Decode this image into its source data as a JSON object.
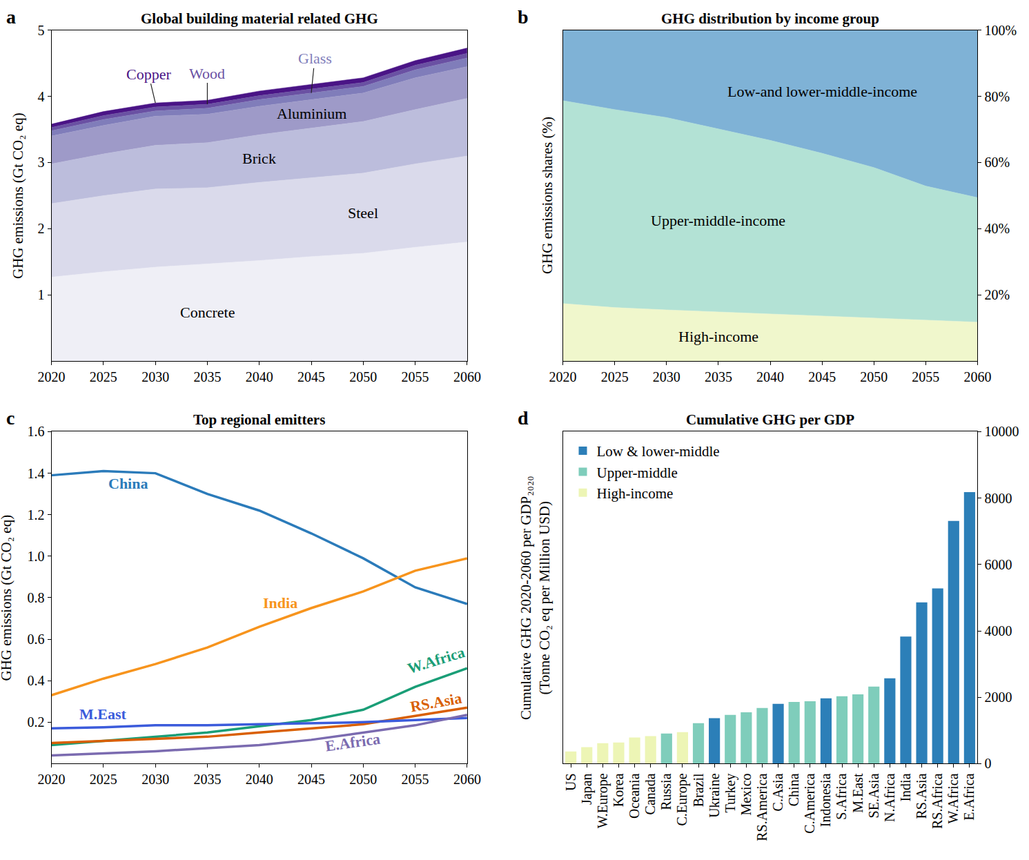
{
  "chart_data": [
    {
      "panel": "a",
      "type": "area",
      "stacked": true,
      "title": "Global building material related GHG",
      "y_label": "GHG emissions (Gt CO₂ eq)",
      "x": [
        2020,
        2025,
        2030,
        2035,
        2040,
        2045,
        2050,
        2055,
        2060
      ],
      "xlim": [
        2020,
        2060
      ],
      "xticks": [
        2020,
        2025,
        2030,
        2035,
        2040,
        2045,
        2050,
        2055,
        2060
      ],
      "ylim": [
        0,
        5
      ],
      "yticks": [
        1,
        2,
        3,
        4,
        5
      ],
      "series": [
        {
          "name": "Concrete",
          "color": "#efeff6",
          "values": [
            1.27,
            1.35,
            1.42,
            1.47,
            1.52,
            1.58,
            1.63,
            1.72,
            1.8
          ]
        },
        {
          "name": "Steel",
          "color": "#dadaeb",
          "values": [
            1.11,
            1.15,
            1.18,
            1.15,
            1.18,
            1.19,
            1.21,
            1.26,
            1.3
          ]
        },
        {
          "name": "Brick",
          "color": "#bcbddc",
          "values": [
            0.6,
            0.63,
            0.66,
            0.68,
            0.72,
            0.75,
            0.78,
            0.82,
            0.87
          ]
        },
        {
          "name": "Aluminium",
          "color": "#9e9ac8",
          "values": [
            0.42,
            0.43,
            0.44,
            0.43,
            0.43,
            0.43,
            0.43,
            0.48,
            0.48
          ]
        },
        {
          "name": "Glass",
          "color": "#807dba",
          "values": [
            0.08,
            0.09,
            0.08,
            0.09,
            0.1,
            0.1,
            0.1,
            0.12,
            0.13
          ]
        },
        {
          "name": "Wood",
          "color": "#6a51a3",
          "values": [
            0.05,
            0.06,
            0.06,
            0.06,
            0.06,
            0.06,
            0.06,
            0.07,
            0.07
          ]
        },
        {
          "name": "Copper",
          "color": "#4a1486",
          "values": [
            0.05,
            0.06,
            0.06,
            0.06,
            0.07,
            0.07,
            0.07,
            0.07,
            0.08
          ]
        }
      ]
    },
    {
      "panel": "b",
      "type": "area",
      "stacked": true,
      "title": "GHG distribution by income group",
      "y_label": "GHG emissions shares (%)",
      "x": [
        2020,
        2025,
        2030,
        2035,
        2040,
        2045,
        2050,
        2055,
        2060
      ],
      "xlim": [
        2020,
        2060
      ],
      "xticks": [
        2020,
        2025,
        2030,
        2035,
        2040,
        2045,
        2050,
        2055,
        2060
      ],
      "ylim": [
        0,
        100
      ],
      "yticks": [
        {
          "value": 20,
          "label": "20%"
        },
        {
          "value": 40,
          "label": "40%"
        },
        {
          "value": 60,
          "label": "60%"
        },
        {
          "value": 80,
          "label": "80%"
        },
        {
          "value": 100,
          "label": "100%"
        }
      ],
      "series": [
        {
          "name": "High-income",
          "color": "#f0f7cc",
          "values": [
            17.4,
            16.2,
            15.5,
            14.9,
            14.3,
            13.7,
            13.1,
            12.4,
            11.8
          ]
        },
        {
          "name": "Upper-middle-income",
          "color": "#b3e2d5",
          "values": [
            61.3,
            59.8,
            58.1,
            55.3,
            52.4,
            49.1,
            45.4,
            40.5,
            37.6
          ]
        },
        {
          "name": "Low-and lower-middle-income",
          "color": "#7fb2d6",
          "values": [
            21.3,
            24.0,
            26.4,
            29.8,
            33.3,
            37.2,
            41.5,
            47.1,
            50.6
          ]
        }
      ]
    },
    {
      "panel": "c",
      "type": "line",
      "title": "Top regional emitters",
      "y_label": "GHG emissions (Gt CO₂ eq)",
      "x": [
        2020,
        2025,
        2030,
        2035,
        2040,
        2045,
        2050,
        2055,
        2060
      ],
      "xlim": [
        2020,
        2060
      ],
      "xticks": [
        2020,
        2025,
        2030,
        2035,
        2040,
        2045,
        2050,
        2055,
        2060
      ],
      "ylim": [
        0,
        1.6
      ],
      "yticks": [
        0.2,
        0.4,
        0.6,
        0.8,
        {
          "value": 1,
          "label": "1.0"
        },
        1.2,
        1.4,
        1.6
      ],
      "series": [
        {
          "name": "China",
          "color": "#2b7bba",
          "values": [
            1.39,
            1.41,
            1.4,
            1.3,
            1.22,
            1.11,
            0.99,
            0.85,
            0.77
          ]
        },
        {
          "name": "India",
          "color": "#f7941d",
          "values": [
            0.33,
            0.41,
            0.48,
            0.56,
            0.66,
            0.75,
            0.83,
            0.93,
            0.99
          ]
        },
        {
          "name": "W.Africa",
          "color": "#1a9e77",
          "values": [
            0.09,
            0.11,
            0.13,
            0.15,
            0.18,
            0.21,
            0.26,
            0.37,
            0.46
          ]
        },
        {
          "name": "RS.Asia",
          "color": "#d95f02",
          "values": [
            0.1,
            0.11,
            0.12,
            0.13,
            0.15,
            0.17,
            0.19,
            0.23,
            0.27
          ]
        },
        {
          "name": "M.East",
          "color": "#3b5bdb",
          "values": [
            0.17,
            0.175,
            0.185,
            0.185,
            0.19,
            0.195,
            0.2,
            0.21,
            0.22
          ]
        },
        {
          "name": "E.Africa",
          "color": "#7b6bb0",
          "values": [
            0.04,
            0.05,
            0.06,
            0.075,
            0.09,
            0.115,
            0.15,
            0.185,
            0.235
          ]
        }
      ]
    },
    {
      "panel": "d",
      "type": "bar",
      "legend": "upper left",
      "title": "Cumulative GHG per GDP",
      "y_label": [
        "Cumulative GHG 2020-2060 per GDP₂₀₂₀",
        "(Tonne CO₂ eq per Million USD)"
      ],
      "categories": [
        "US",
        "Japan",
        "W.Europe",
        "Korea",
        "Oceania",
        "Canada",
        "Russia",
        "C.Europe",
        "Brazil",
        "Ukraine",
        "Turkey",
        "Mexico",
        "RS.America",
        "C.Asia",
        "China",
        "C.America",
        "Indonesia",
        "S.Africa",
        "M.East",
        "SE.Asia",
        "N.Africa",
        "India",
        "RS.Asia",
        "RS.Africa",
        "W.Africa",
        "E.Africa"
      ],
      "ylim": [
        0,
        10000
      ],
      "yticks": [
        0,
        2000,
        4000,
        6000,
        8000,
        10000
      ],
      "series": [
        {
          "name": "High-income",
          "color": "#edf5b5",
          "values": [
            370,
            500,
            620,
            640,
            790,
            830,
            null,
            950,
            null,
            null,
            null,
            null,
            null,
            null,
            null,
            null,
            null,
            null,
            null,
            null,
            null,
            null,
            null,
            null,
            null,
            null
          ]
        },
        {
          "name": "Upper-middle",
          "color": "#7fcdbb",
          "values": [
            null,
            null,
            null,
            null,
            null,
            null,
            910,
            null,
            1220,
            null,
            1470,
            1550,
            1680,
            null,
            1860,
            1880,
            null,
            2030,
            2090,
            2320,
            null,
            null,
            null,
            null,
            null,
            null
          ]
        },
        {
          "name": "Low & lower-middle",
          "color": "#2c7fb8",
          "values": [
            null,
            null,
            null,
            null,
            null,
            null,
            null,
            null,
            null,
            1370,
            null,
            null,
            null,
            1800,
            null,
            null,
            1970,
            null,
            null,
            null,
            2570,
            3830,
            4860,
            5280,
            7310,
            8180
          ]
        }
      ]
    }
  ]
}
